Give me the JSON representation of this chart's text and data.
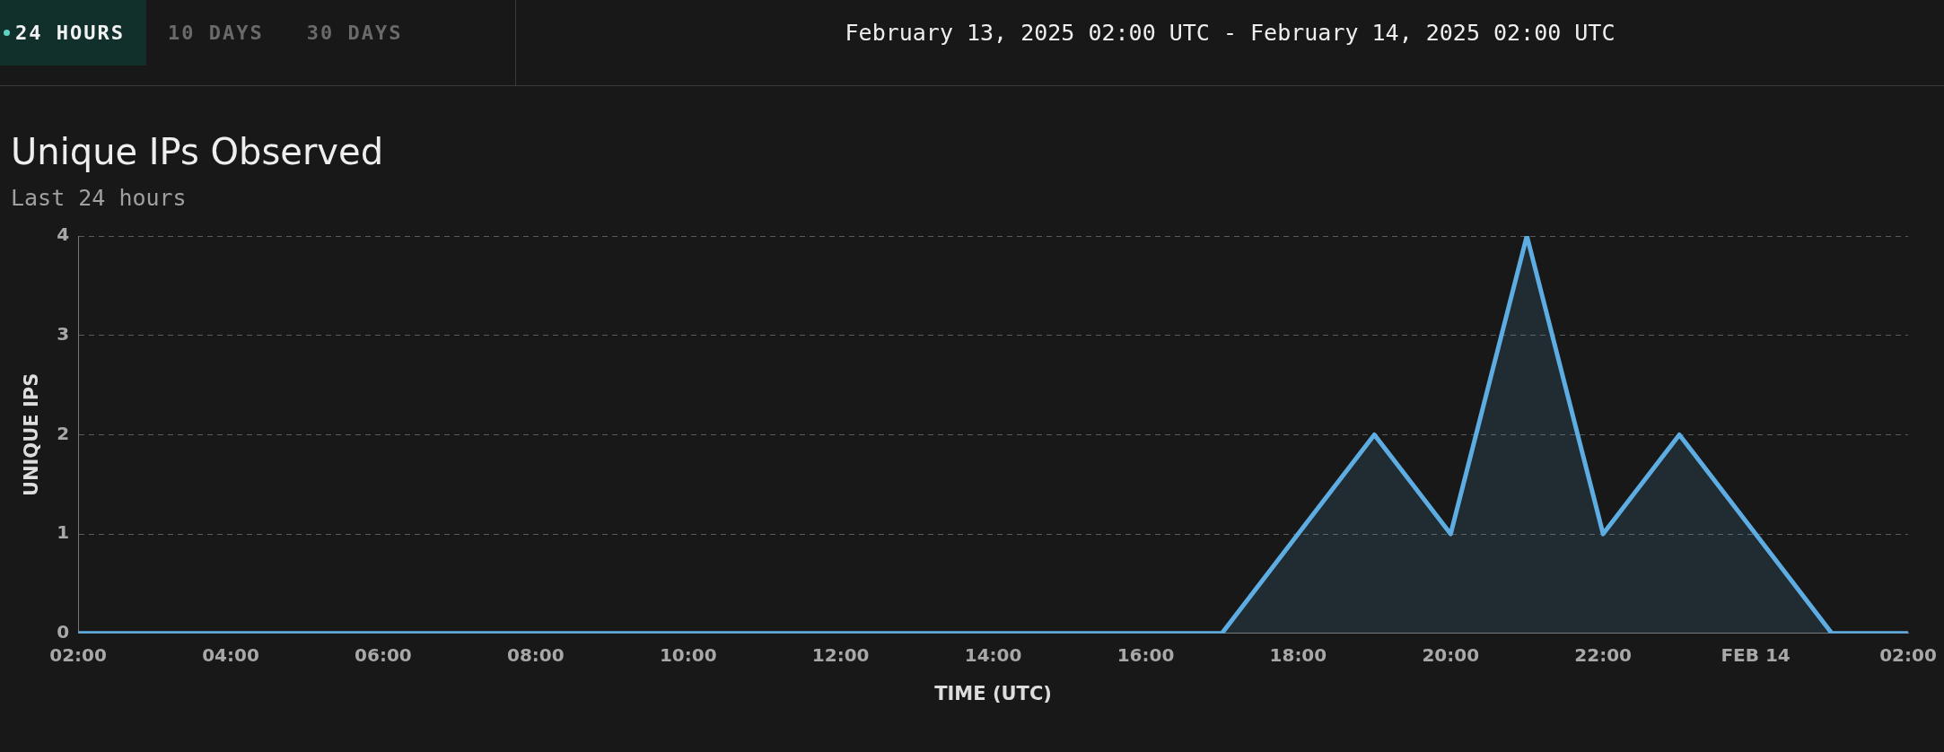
{
  "chart_data": {
    "type": "area",
    "title": "Unique IPs Observed",
    "subtitle": "Last 24 hours",
    "xlabel": "TIME (UTC)",
    "ylabel": "UNIQUE IPS",
    "annotations": [
      "24 HOURS",
      "10 DAYS",
      "30 DAYS",
      "February 13, 2025 02:00 UTC - February 14, 2025 02:00 UTC"
    ],
    "x": [
      "2025-02-13T02:00",
      "2025-02-13T03:00",
      "2025-02-13T04:00",
      "2025-02-13T05:00",
      "2025-02-13T06:00",
      "2025-02-13T07:00",
      "2025-02-13T08:00",
      "2025-02-13T09:00",
      "2025-02-13T10:00",
      "2025-02-13T11:00",
      "2025-02-13T12:00",
      "2025-02-13T13:00",
      "2025-02-13T14:00",
      "2025-02-13T15:00",
      "2025-02-13T16:00",
      "2025-02-13T17:00",
      "2025-02-13T18:00",
      "2025-02-13T19:00",
      "2025-02-13T20:00",
      "2025-02-13T21:00",
      "2025-02-13T22:00",
      "2025-02-13T23:00",
      "2025-02-14T00:00",
      "2025-02-14T01:00",
      "2025-02-14T02:00"
    ],
    "series": [
      {
        "color": "#5dade2",
        "values": [
          0,
          0,
          0,
          0,
          0,
          0,
          0,
          0,
          0,
          0,
          0,
          0,
          0,
          0,
          0,
          0,
          1,
          2,
          1,
          4,
          1,
          2,
          1,
          0,
          0
        ]
      }
    ],
    "xlim": [
      "2025-02-13T02:00",
      "2025-02-14T02:00"
    ],
    "xticks": [
      {
        "value": "2025-02-13T02:00",
        "label": "02:00"
      },
      {
        "value": "2025-02-13T04:00",
        "label": "04:00"
      },
      {
        "value": "2025-02-13T06:00",
        "label": "06:00"
      },
      {
        "value": "2025-02-13T08:00",
        "label": "08:00"
      },
      {
        "value": "2025-02-13T10:00",
        "label": "10:00"
      },
      {
        "value": "2025-02-13T12:00",
        "label": "12:00"
      },
      {
        "value": "2025-02-13T14:00",
        "label": "14:00"
      },
      {
        "value": "2025-02-13T16:00",
        "label": "16:00"
      },
      {
        "value": "2025-02-13T18:00",
        "label": "18:00"
      },
      {
        "value": "2025-02-13T20:00",
        "label": "20:00"
      },
      {
        "value": "2025-02-13T22:00",
        "label": "22:00"
      },
      {
        "value": "2025-02-14T00:00",
        "label": "FEB 14"
      },
      {
        "value": "2025-02-14T02:00",
        "label": "02:00"
      }
    ],
    "ylim": [
      0,
      4
    ],
    "yticks": [
      0,
      1,
      2,
      3,
      4
    ],
    "grid": "y",
    "legend": false,
    "marker": "none",
    "line_style": "solid"
  }
}
